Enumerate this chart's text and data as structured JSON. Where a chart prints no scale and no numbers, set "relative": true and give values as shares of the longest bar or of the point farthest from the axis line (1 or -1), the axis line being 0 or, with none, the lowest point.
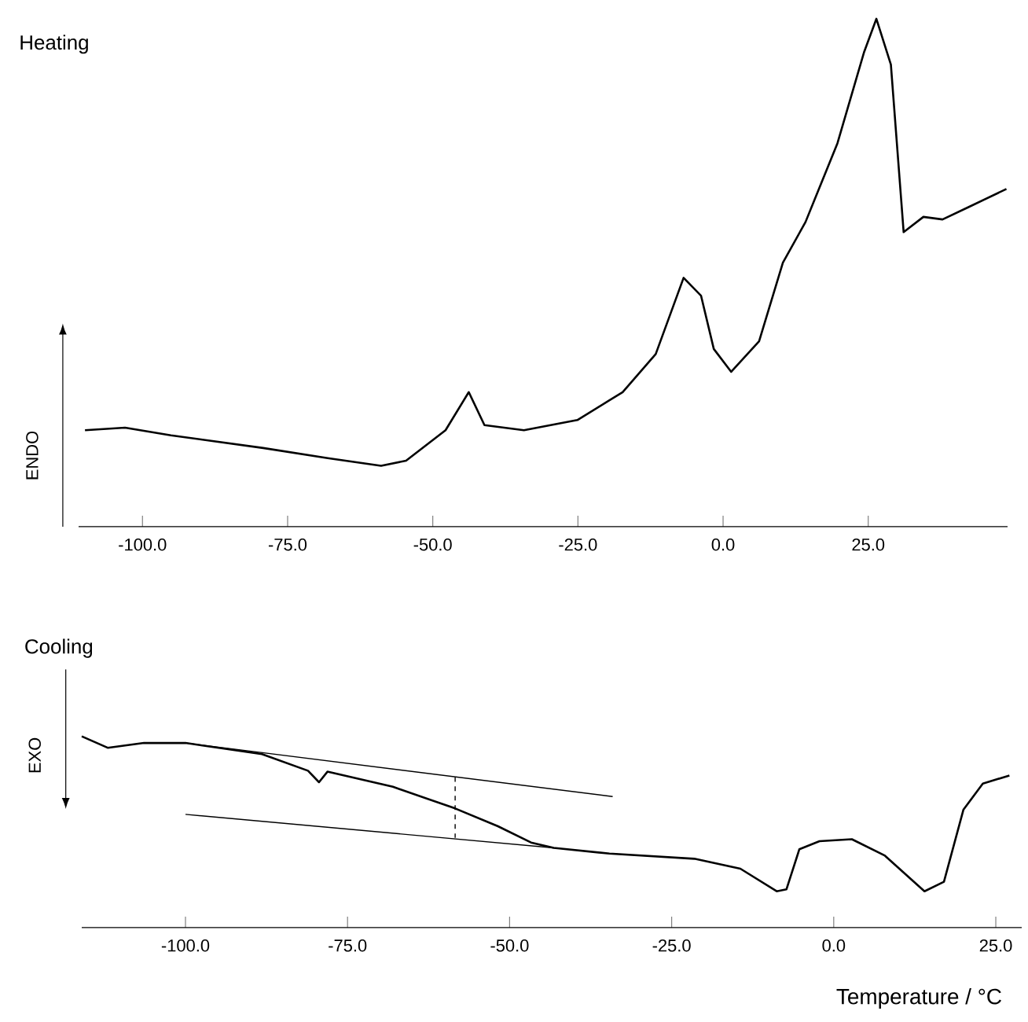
{
  "chart_data": [
    {
      "type": "line",
      "title": "Heating",
      "ylabel": "ENDO",
      "relative": true,
      "xlim": [
        -111,
        49
      ],
      "xticks": [
        {
          "value": -100,
          "label": "-100.0"
        },
        {
          "value": -75,
          "label": "-75.0"
        },
        {
          "value": -50,
          "label": "-50.0"
        },
        {
          "value": -25,
          "label": "-25.0"
        },
        {
          "value": 0,
          "label": "0.0"
        },
        {
          "value": 25,
          "label": "25.0"
        }
      ],
      "series": [
        {
          "color": "#000000",
          "x": [
            -109.9,
            -103,
            -95.1,
            -79.2,
            -68.1,
            -58.9,
            -54.6,
            -47.8,
            -43.8,
            -41.1,
            -34.3,
            -25.1,
            -17.3,
            -11.6,
            -6.8,
            -3.8,
            -1.6,
            1.4,
            6.2,
            10.3,
            14.2,
            19.7,
            24.3,
            26.4,
            28.9,
            31.1,
            34.5,
            37.8,
            42.4,
            48.8
          ],
          "values": [
            0.19,
            0.195,
            0.18,
            0.155,
            0.135,
            0.12,
            0.13,
            0.19,
            0.265,
            0.2,
            0.19,
            0.21,
            0.265,
            0.34,
            0.49,
            0.455,
            0.35,
            0.305,
            0.365,
            0.52,
            0.6,
            0.755,
            0.935,
            1.0,
            0.91,
            0.58,
            0.61,
            0.605,
            0.63,
            0.665
          ]
        }
      ]
    },
    {
      "type": "line",
      "title": "Cooling",
      "ylabel": "EXO",
      "xlabel": "Temperature / °C",
      "relative": true,
      "xlim": [
        -116,
        29
      ],
      "xticks": [
        {
          "value": -100,
          "label": "-100.0"
        },
        {
          "value": -75,
          "label": "-75.0"
        },
        {
          "value": -50,
          "label": "-50.0"
        },
        {
          "value": -25,
          "label": "-25.0"
        },
        {
          "value": 0,
          "label": "0.0"
        },
        {
          "value": 25,
          "label": "25.0"
        }
      ],
      "series": [
        {
          "color": "#000000",
          "x": [
            -116,
            -112,
            -106.4,
            -100,
            -88.2,
            -81.1,
            -79.4,
            -78.1,
            -68,
            -58.4,
            -51.8,
            -46.7,
            -43.2,
            -34.6,
            -21.5,
            -14.4,
            -8.8,
            -7.3,
            -5.3,
            -2.2,
            2.8,
            7.9,
            14,
            17,
            20,
            23,
            27.1
          ],
          "values": [
            1.0,
            0.94,
            0.965,
            0.965,
            0.907,
            0.82,
            0.76,
            0.815,
            0.736,
            0.623,
            0.53,
            0.445,
            0.417,
            0.387,
            0.36,
            0.308,
            0.19,
            0.2,
            0.41,
            0.452,
            0.462,
            0.376,
            0.19,
            0.24,
            0.616,
            0.753,
            0.795
          ]
        },
        {
          "color": "#000000",
          "x": [
            -100,
            -34.1
          ],
          "values": [
            0.965,
            0.685
          ]
        },
        {
          "color": "#000000",
          "x": [
            -100,
            -43.2
          ],
          "values": [
            0.592,
            0.417
          ]
        },
        {
          "color": "#000000",
          "x": [
            -58.4,
            -58.4
          ],
          "values": [
            0.787,
            0.469
          ],
          "line_style": "dashed"
        }
      ]
    }
  ]
}
